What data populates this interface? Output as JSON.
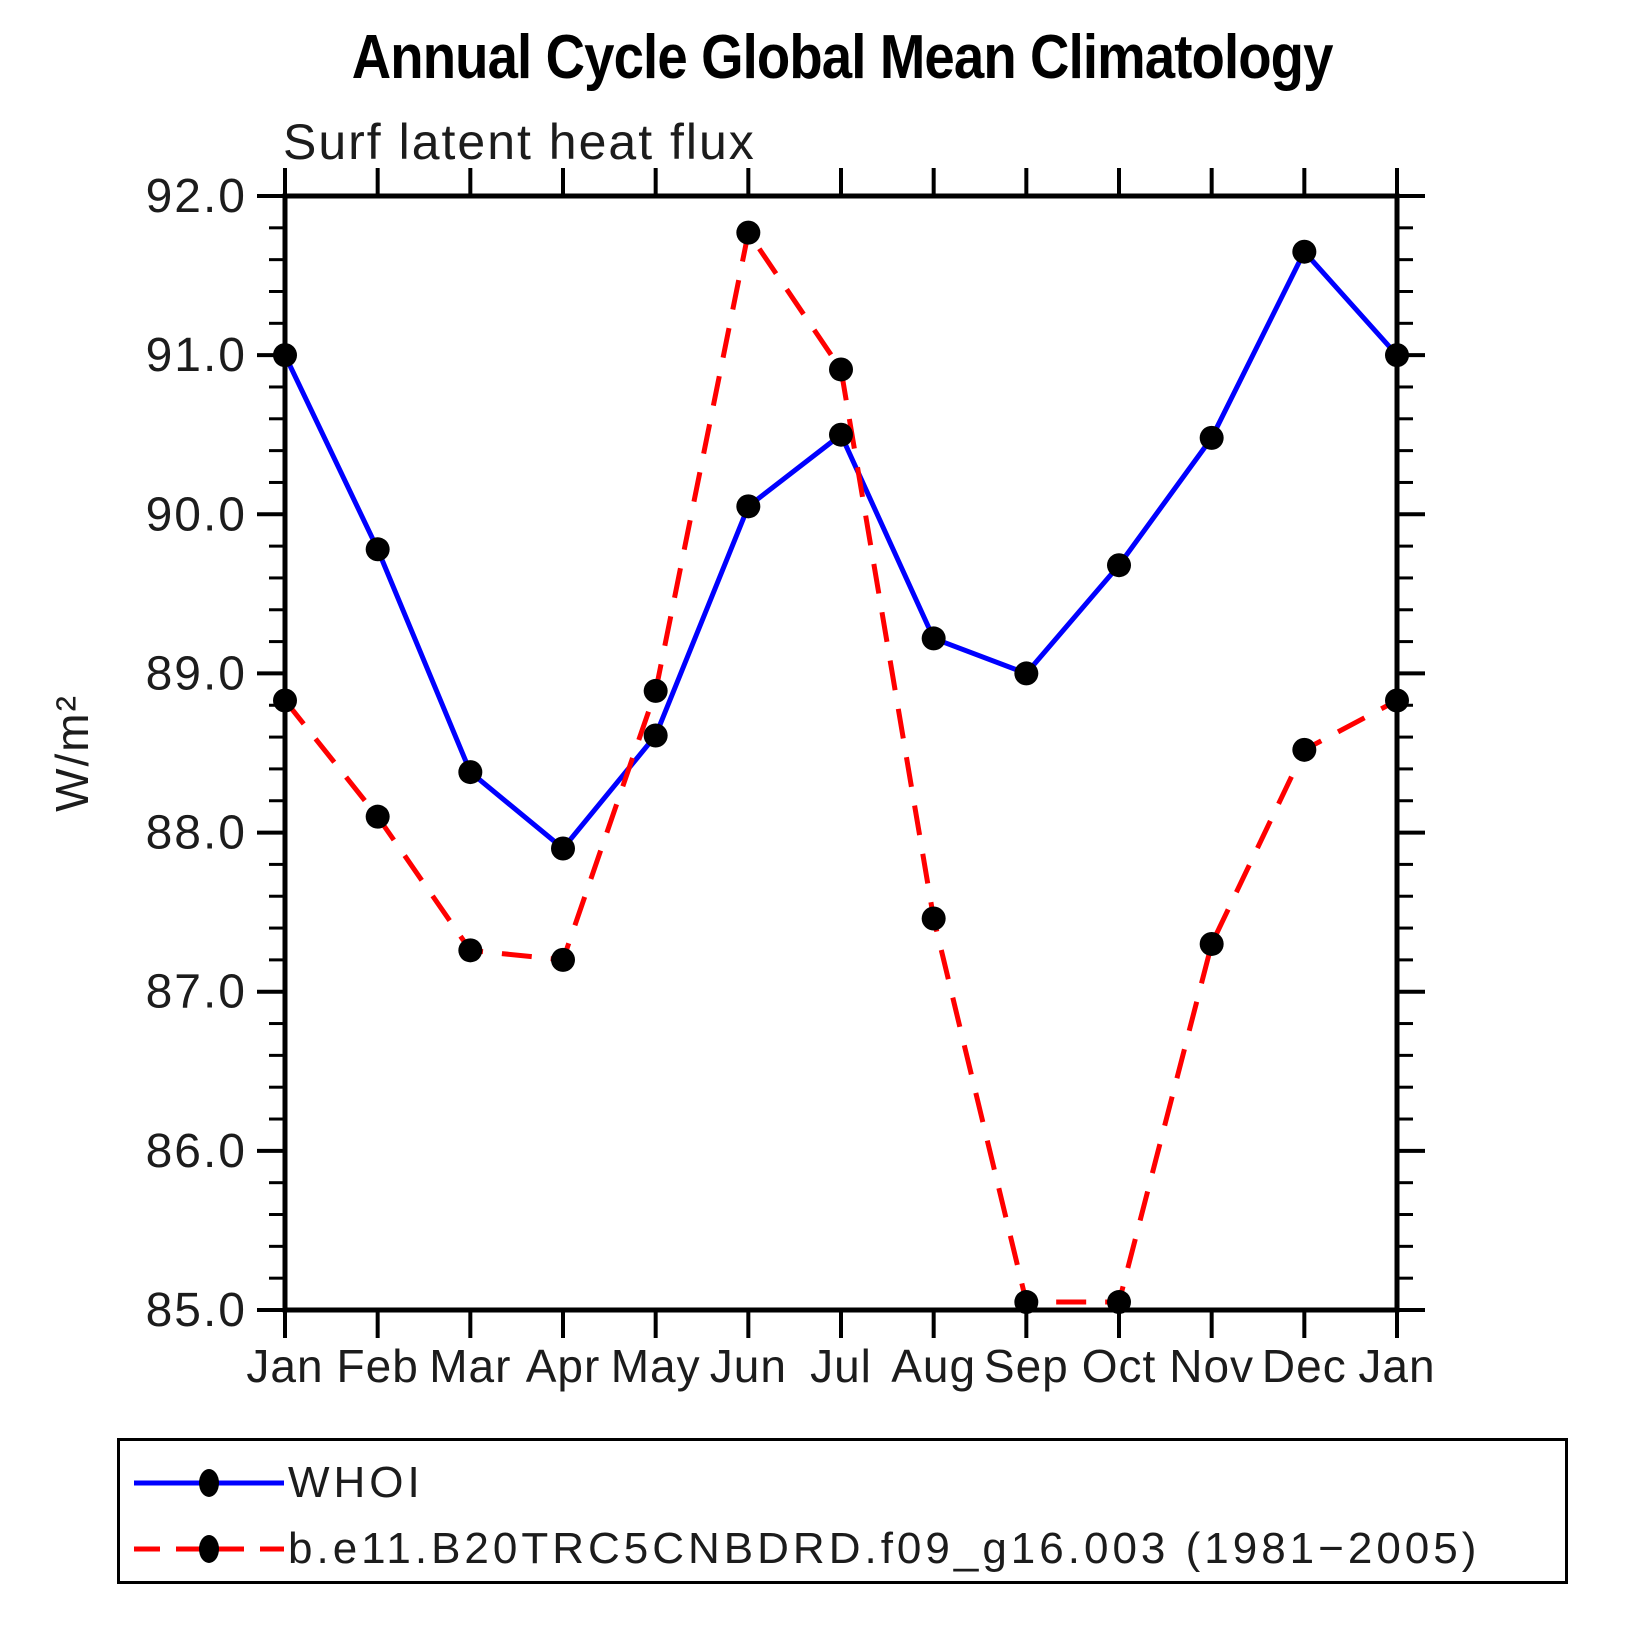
{
  "title": "Annual Cycle Global Mean Climatology",
  "chart_data": {
    "type": "line",
    "title": "Annual Cycle Global Mean Climatology",
    "subtitle": "Surf latent heat flux",
    "ylabel": "W/m²",
    "xlabel": "",
    "categories": [
      "Jan",
      "Feb",
      "Mar",
      "Apr",
      "May",
      "Jun",
      "Jul",
      "Aug",
      "Sep",
      "Oct",
      "Nov",
      "Dec",
      "Jan"
    ],
    "ylim": [
      85.0,
      92.0
    ],
    "y_ticks": [
      {
        "value": 85.0,
        "label": "85.0"
      },
      {
        "value": 86.0,
        "label": "86.0"
      },
      {
        "value": 87.0,
        "label": "87.0"
      },
      {
        "value": 88.0,
        "label": "88.0"
      },
      {
        "value": 89.0,
        "label": "89.0"
      },
      {
        "value": 90.0,
        "label": "90.0"
      },
      {
        "value": 91.0,
        "label": "91.0"
      },
      {
        "value": 92.0,
        "label": "92.0"
      }
    ],
    "y_minor_tick_interval": 0.2,
    "grid": false,
    "legend_position": "bottom",
    "frame_color": "#000000",
    "marker": "filled-circle",
    "marker_color": "#000000",
    "series": [
      {
        "name": "WHOI",
        "color": "#0000ff",
        "line_style": "solid",
        "values": [
          91.0,
          89.78,
          88.38,
          87.9,
          88.61,
          90.05,
          90.5,
          89.22,
          89.0,
          89.68,
          90.48,
          91.65,
          91.0
        ]
      },
      {
        "name": "b.e11.B20TRC5CNBDRD.f09_g16.003 (1981−2005)",
        "color": "#ff0000",
        "line_style": "dashed",
        "values": [
          88.83,
          88.1,
          87.26,
          87.2,
          88.89,
          91.77,
          90.91,
          87.46,
          85.05,
          85.05,
          87.3,
          88.52,
          88.83
        ]
      }
    ]
  }
}
